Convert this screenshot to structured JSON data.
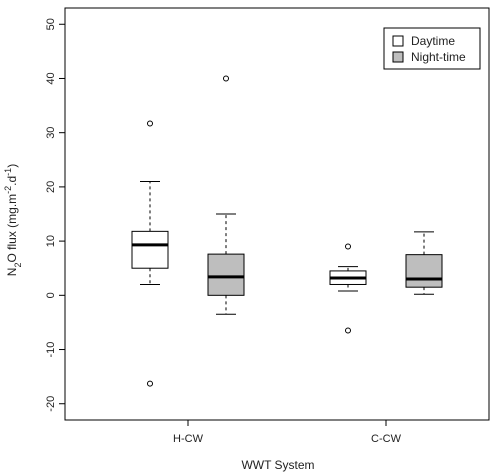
{
  "chart_data": {
    "type": "box",
    "xlabel": "WWT System",
    "ylabel": {
      "pre": "N",
      "sub": "2",
      "mid": "O flux (mg.m",
      "sup1": "-2",
      "sep": ".d",
      "sup2": "-1",
      "post": ")"
    },
    "ylim": [
      -23,
      53
    ],
    "yticks": [
      -20,
      -10,
      0,
      10,
      20,
      30,
      40,
      50
    ],
    "ytick_labels": [
      "-20",
      "-10",
      "0",
      "10",
      "20",
      "30",
      "40",
      "50"
    ],
    "categories": [
      "H-CW",
      "C-CW"
    ],
    "legend_position": "top-right",
    "series": [
      {
        "name": "Daytime",
        "color": "#ffffff",
        "boxes": [
          {
            "category": "H-CW",
            "whisker_low": 2,
            "q1": 5,
            "median": 9.3,
            "q3": 11.8,
            "whisker_high": 21,
            "outliers": [
              31.7,
              -16.3
            ]
          },
          {
            "category": "C-CW",
            "whisker_low": 0.8,
            "q1": 2,
            "median": 3.2,
            "q3": 4.5,
            "whisker_high": 5.3,
            "outliers": [
              9,
              -6.5
            ]
          }
        ]
      },
      {
        "name": "Night-time",
        "color": "#bebebe",
        "boxes": [
          {
            "category": "H-CW",
            "whisker_low": -3.5,
            "q1": 0,
            "median": 3.4,
            "q3": 7.6,
            "whisker_high": 15,
            "outliers": [
              40
            ]
          },
          {
            "category": "C-CW",
            "whisker_low": 0.2,
            "q1": 1.5,
            "median": 3,
            "q3": 7.5,
            "whisker_high": 11.7,
            "outliers": []
          }
        ]
      }
    ]
  }
}
